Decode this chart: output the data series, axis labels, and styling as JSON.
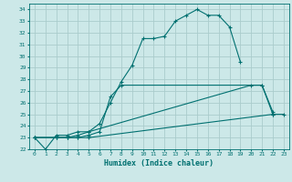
{
  "xlabel": "Humidex (Indice chaleur)",
  "bg_color": "#cce8e8",
  "grid_color": "#aacccc",
  "line_color": "#007070",
  "xlim": [
    -0.5,
    23.5
  ],
  "ylim": [
    22,
    34.5
  ],
  "xticks": [
    0,
    1,
    2,
    3,
    4,
    5,
    6,
    7,
    8,
    9,
    10,
    11,
    12,
    13,
    14,
    15,
    16,
    17,
    18,
    19,
    20,
    21,
    22,
    23
  ],
  "yticks": [
    22,
    23,
    24,
    25,
    26,
    27,
    28,
    29,
    30,
    31,
    32,
    33,
    34
  ],
  "line1_x": [
    0,
    1,
    2,
    3,
    4,
    5,
    6,
    7,
    8,
    9,
    10,
    11,
    12,
    13,
    14,
    15,
    16,
    17,
    18,
    19
  ],
  "line1_y": [
    23,
    22,
    23.2,
    23.2,
    23.5,
    23.5,
    24.2,
    26.0,
    27.8,
    29.2,
    31.5,
    31.5,
    31.7,
    33.0,
    33.5,
    34.0,
    33.5,
    33.5,
    32.5,
    29.5
  ],
  "line2_x": [
    0,
    2,
    3,
    4,
    5,
    6,
    7,
    8,
    21,
    22
  ],
  "line2_y": [
    23,
    23,
    23,
    23,
    23.2,
    23.5,
    26.5,
    27.5,
    27.5,
    25.0
  ],
  "line3_x": [
    0,
    2,
    3,
    4,
    5,
    20,
    21,
    22
  ],
  "line3_y": [
    23,
    23,
    23,
    23.2,
    23.5,
    27.5,
    27.5,
    25.2
  ],
  "line4_x": [
    0,
    2,
    3,
    4,
    5,
    22,
    23
  ],
  "line4_y": [
    23,
    23,
    23,
    23,
    23,
    25,
    25
  ]
}
